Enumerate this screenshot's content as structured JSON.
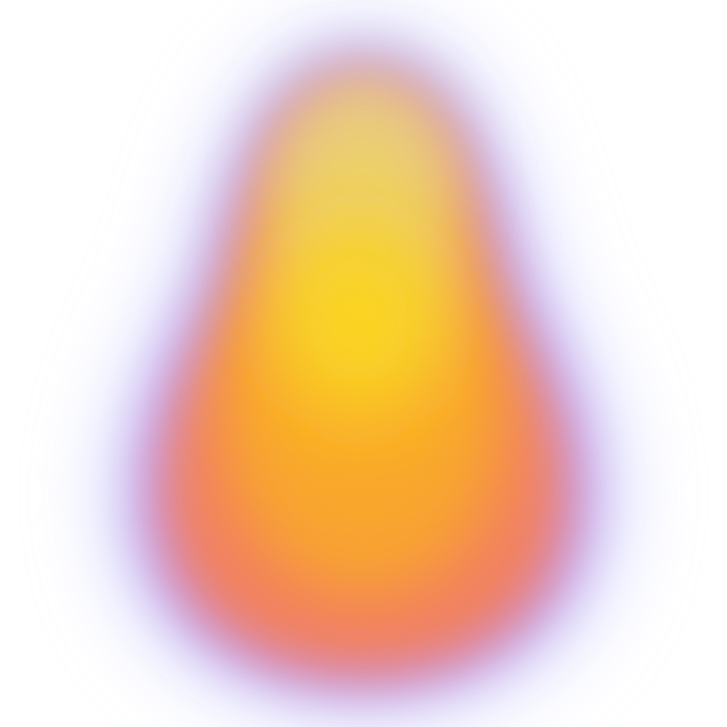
{
  "image": {
    "subject": "gradient-blob",
    "background_color": "#ffffff",
    "palette": {
      "halo_blue": "#c9cdfd",
      "halo_violet": "#c58be0",
      "outer_pink": "#e89aa0",
      "body_coral": "#f27f62",
      "mid_orange": "#f9a72a",
      "core_yellow": "#fcd419",
      "top_yellow": "#ecd070",
      "top_tan": "#e0c2a4"
    }
  }
}
